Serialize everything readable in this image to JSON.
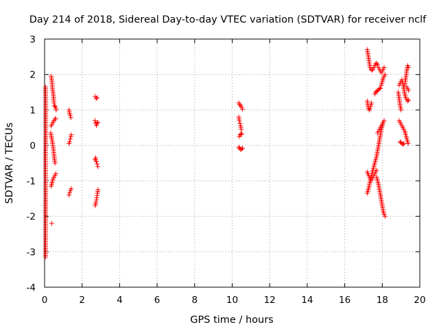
{
  "chart_data": {
    "type": "scatter",
    "title": "Day 214 of 2018, Sidereal Day-to-day VTEC variation (SDTVAR) for receiver nclf",
    "xlabel": "GPS time / hours",
    "ylabel": "SDTVAR / TECUs",
    "xlim": [
      0,
      20
    ],
    "ylim": [
      -4,
      3
    ],
    "x_ticks": [
      "0",
      "2",
      "4",
      "6",
      "8",
      "10",
      "12",
      "14",
      "16",
      "18",
      "20"
    ],
    "y_ticks": [
      "-4",
      "-3",
      "-2",
      "-1",
      "0",
      "1",
      "2",
      "3"
    ],
    "grid": true,
    "marker": "+",
    "series": [
      {
        "name": "SDTVAR",
        "color": "#ff0000",
        "segments": [
          [
            [
              0.05,
              1.65
            ],
            [
              0.05,
              1.6
            ],
            [
              0.06,
              1.2
            ],
            [
              0.06,
              0.05
            ],
            [
              0.05,
              -0.1
            ],
            [
              0.06,
              -1.5
            ],
            [
              0.05,
              -3.05
            ],
            [
              0.05,
              -3.15
            ]
          ],
          [
            [
              0.35,
              1.95
            ],
            [
              0.38,
              1.85
            ],
            [
              0.4,
              1.75
            ],
            [
              0.42,
              1.6
            ],
            [
              0.45,
              1.5
            ],
            [
              0.48,
              1.35
            ],
            [
              0.5,
              1.2
            ],
            [
              0.53,
              1.12
            ],
            [
              0.56,
              1.1
            ],
            [
              0.6,
              1.05
            ],
            [
              0.62,
              1.0
            ]
          ],
          [
            [
              0.35,
              0.55
            ],
            [
              0.4,
              0.6
            ],
            [
              0.45,
              0.65
            ],
            [
              0.5,
              0.7
            ],
            [
              0.55,
              0.75
            ],
            [
              0.6,
              0.75
            ]
          ],
          [
            [
              0.33,
              0.35
            ],
            [
              0.36,
              0.25
            ],
            [
              0.4,
              0.15
            ],
            [
              0.43,
              0.05
            ],
            [
              0.47,
              -0.1
            ],
            [
              0.5,
              -0.25
            ],
            [
              0.53,
              -0.4
            ],
            [
              0.56,
              -0.5
            ]
          ],
          [
            [
              0.35,
              -1.15
            ],
            [
              0.4,
              -1.05
            ],
            [
              0.45,
              -0.95
            ],
            [
              0.5,
              -0.9
            ],
            [
              0.55,
              -0.85
            ],
            [
              0.6,
              -0.8
            ]
          ],
          [
            [
              0.38,
              -2.2
            ]
          ],
          [
            [
              1.3,
              1.0
            ],
            [
              1.33,
              0.9
            ],
            [
              1.37,
              0.85
            ],
            [
              1.4,
              0.78
            ]
          ],
          [
            [
              1.3,
              0.05
            ],
            [
              1.33,
              0.1
            ],
            [
              1.37,
              0.18
            ],
            [
              1.4,
              0.25
            ],
            [
              1.42,
              0.3
            ]
          ],
          [
            [
              1.3,
              -1.4
            ],
            [
              1.34,
              -1.33
            ],
            [
              1.38,
              -1.27
            ],
            [
              1.42,
              -1.22
            ]
          ],
          [
            [
              2.7,
              1.38
            ],
            [
              2.75,
              1.32
            ],
            [
              2.8,
              1.35
            ]
          ],
          [
            [
              2.68,
              0.7
            ],
            [
              2.72,
              0.63
            ],
            [
              2.76,
              0.56
            ],
            [
              2.8,
              0.62
            ],
            [
              2.84,
              0.65
            ]
          ],
          [
            [
              2.68,
              -0.4
            ],
            [
              2.72,
              -0.35
            ],
            [
              2.76,
              -0.45
            ],
            [
              2.8,
              -0.52
            ],
            [
              2.84,
              -0.6
            ]
          ],
          [
            [
              2.7,
              -1.7
            ],
            [
              2.74,
              -1.6
            ],
            [
              2.78,
              -1.48
            ],
            [
              2.82,
              -1.35
            ],
            [
              2.85,
              -1.25
            ]
          ],
          [
            [
              10.35,
              1.2
            ],
            [
              10.4,
              1.15
            ],
            [
              10.45,
              1.12
            ],
            [
              10.5,
              1.08
            ],
            [
              10.55,
              1.02
            ]
          ],
          [
            [
              10.35,
              0.8
            ],
            [
              10.38,
              0.7
            ],
            [
              10.42,
              0.62
            ],
            [
              10.45,
              0.55
            ],
            [
              10.48,
              0.45
            ]
          ],
          [
            [
              10.38,
              0.25
            ],
            [
              10.42,
              0.3
            ],
            [
              10.47,
              0.32
            ],
            [
              10.52,
              0.33
            ]
          ],
          [
            [
              10.35,
              -0.05
            ],
            [
              10.4,
              -0.08
            ],
            [
              10.45,
              -0.12
            ],
            [
              10.5,
              -0.1
            ],
            [
              10.55,
              -0.08
            ]
          ],
          [
            [
              17.2,
              2.7
            ],
            [
              17.23,
              2.6
            ],
            [
              17.26,
              2.5
            ],
            [
              17.29,
              2.4
            ],
            [
              17.32,
              2.3
            ],
            [
              17.35,
              2.2
            ],
            [
              17.4,
              2.15
            ],
            [
              17.45,
              2.12
            ],
            [
              17.5,
              2.15
            ],
            [
              17.55,
              2.2
            ],
            [
              17.6,
              2.25
            ],
            [
              17.65,
              2.3
            ],
            [
              17.7,
              2.32
            ],
            [
              17.75,
              2.28
            ],
            [
              17.8,
              2.2
            ],
            [
              17.85,
              2.15
            ],
            [
              17.9,
              2.1
            ],
            [
              17.95,
              2.05
            ],
            [
              18.0,
              2.1
            ],
            [
              18.05,
              2.15
            ],
            [
              18.1,
              2.2
            ]
          ],
          [
            [
              17.6,
              1.45
            ],
            [
              17.65,
              1.5
            ],
            [
              17.7,
              1.52
            ],
            [
              17.75,
              1.55
            ],
            [
              17.8,
              1.57
            ],
            [
              17.85,
              1.6
            ],
            [
              17.9,
              1.62
            ],
            [
              17.95,
              1.7
            ],
            [
              18.0,
              1.8
            ],
            [
              18.05,
              1.9
            ],
            [
              18.1,
              1.95
            ],
            [
              18.15,
              2.0
            ]
          ],
          [
            [
              17.2,
              1.25
            ],
            [
              17.23,
              1.15
            ],
            [
              17.26,
              1.05
            ],
            [
              17.3,
              1.0
            ],
            [
              17.34,
              1.03
            ],
            [
              17.38,
              1.1
            ],
            [
              17.42,
              1.2
            ]
          ],
          [
            [
              17.2,
              -0.75
            ],
            [
              17.24,
              -0.8
            ],
            [
              17.28,
              -0.85
            ],
            [
              17.32,
              -0.9
            ],
            [
              17.36,
              -0.95
            ],
            [
              17.4,
              -1.0
            ],
            [
              17.45,
              -0.95
            ],
            [
              17.5,
              -0.9
            ],
            [
              17.55,
              -0.85
            ],
            [
              17.6,
              -0.8
            ],
            [
              17.65,
              -0.75
            ],
            [
              17.7,
              -0.7
            ]
          ],
          [
            [
              17.2,
              -1.35
            ],
            [
              17.25,
              -1.25
            ],
            [
              17.3,
              -1.15
            ],
            [
              17.35,
              -1.0
            ],
            [
              17.4,
              -0.9
            ],
            [
              17.45,
              -0.8
            ],
            [
              17.5,
              -0.7
            ],
            [
              17.55,
              -0.6
            ],
            [
              17.6,
              -0.5
            ],
            [
              17.65,
              -0.4
            ],
            [
              17.7,
              -0.3
            ],
            [
              17.75,
              -0.15
            ],
            [
              17.8,
              0.0
            ],
            [
              17.85,
              0.15
            ],
            [
              17.9,
              0.3
            ],
            [
              17.95,
              0.45
            ],
            [
              18.0,
              0.55
            ],
            [
              18.05,
              0.65
            ],
            [
              18.1,
              0.7
            ]
          ],
          [
            [
              17.7,
              -0.9
            ],
            [
              17.75,
              -1.0
            ],
            [
              17.8,
              -1.1
            ],
            [
              17.85,
              -1.25
            ],
            [
              17.9,
              -1.4
            ],
            [
              17.95,
              -1.55
            ],
            [
              18.0,
              -1.7
            ],
            [
              18.05,
              -1.85
            ],
            [
              18.1,
              -1.95
            ],
            [
              18.15,
              -2.0
            ]
          ],
          [
            [
              17.75,
              0.35
            ],
            [
              17.8,
              0.4
            ],
            [
              17.85,
              0.45
            ],
            [
              17.9,
              0.5
            ],
            [
              17.95,
              0.55
            ],
            [
              18.0,
              0.6
            ]
          ],
          [
            [
              18.9,
              1.7
            ],
            [
              18.95,
              1.75
            ],
            [
              19.0,
              1.8
            ],
            [
              19.05,
              1.85
            ],
            [
              19.1,
              1.75
            ],
            [
              19.15,
              1.6
            ],
            [
              19.2,
              1.45
            ],
            [
              19.25,
              1.35
            ],
            [
              19.3,
              1.3
            ],
            [
              19.35,
              1.25
            ],
            [
              19.4,
              1.28
            ]
          ],
          [
            [
              18.85,
              1.5
            ],
            [
              18.88,
              1.4
            ],
            [
              18.92,
              1.25
            ],
            [
              18.96,
              1.1
            ],
            [
              19.0,
              1.0
            ]
          ],
          [
            [
              18.9,
              0.7
            ],
            [
              18.95,
              0.65
            ],
            [
              19.0,
              0.6
            ],
            [
              19.05,
              0.55
            ],
            [
              19.1,
              0.5
            ],
            [
              19.15,
              0.45
            ],
            [
              19.2,
              0.4
            ],
            [
              19.25,
              0.3
            ],
            [
              19.3,
              0.2
            ],
            [
              19.35,
              0.1
            ],
            [
              19.38,
              0.05
            ]
          ],
          [
            [
              18.95,
              0.1
            ],
            [
              19.0,
              0.08
            ],
            [
              19.05,
              0.05
            ],
            [
              19.1,
              0.03
            ],
            [
              19.15,
              0.05
            ]
          ],
          [
            [
              19.2,
              1.7
            ],
            [
              19.22,
              1.8
            ],
            [
              19.25,
              1.9
            ],
            [
              19.28,
              2.0
            ],
            [
              19.3,
              2.1
            ],
            [
              19.33,
              2.2
            ],
            [
              19.36,
              2.25
            ],
            [
              19.4,
              2.2
            ]
          ],
          [
            [
              19.3,
              1.65
            ],
            [
              19.35,
              1.6
            ],
            [
              19.4,
              1.55
            ]
          ]
        ]
      }
    ]
  }
}
